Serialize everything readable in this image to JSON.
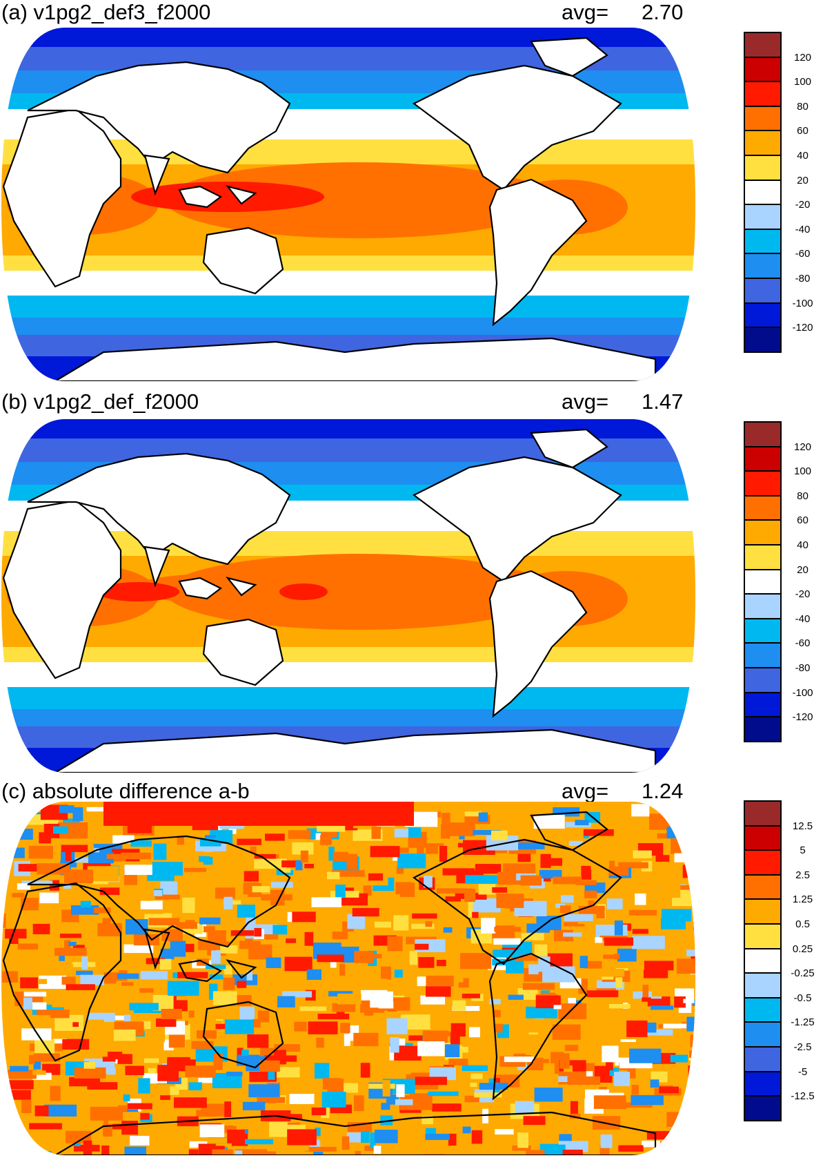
{
  "panels": [
    {
      "id": "a",
      "title": "(a) v1pg2_def3_f2000",
      "avg_label": "avg=",
      "avg_value": "2.70",
      "colorbar": {
        "colors": [
          "#9a2a2a",
          "#cc0000",
          "#ff1a00",
          "#ff7000",
          "#ffaa00",
          "#ffe040",
          "#ffffff",
          "#a9d4ff",
          "#00b8f0",
          "#1e8ef0",
          "#4065e0",
          "#0018d8",
          "#000c8c"
        ],
        "labels": [
          "120",
          "100",
          "80",
          "60",
          "40",
          "20",
          "-20",
          "-40",
          "-60",
          "-80",
          "-100",
          "-120"
        ]
      }
    },
    {
      "id": "b",
      "title": "(b) v1pg2_def_f2000",
      "avg_label": "avg=",
      "avg_value": "1.47",
      "colorbar": {
        "colors": [
          "#9a2a2a",
          "#cc0000",
          "#ff1a00",
          "#ff7000",
          "#ffaa00",
          "#ffe040",
          "#ffffff",
          "#a9d4ff",
          "#00b8f0",
          "#1e8ef0",
          "#4065e0",
          "#0018d8",
          "#000c8c"
        ],
        "labels": [
          "120",
          "100",
          "80",
          "60",
          "40",
          "20",
          "-20",
          "-40",
          "-60",
          "-80",
          "-100",
          "-120"
        ]
      }
    },
    {
      "id": "c",
      "title": "(c) absolute difference a-b",
      "avg_label": "avg=",
      "avg_value": "1.24",
      "colorbar": {
        "colors": [
          "#9a2a2a",
          "#cc0000",
          "#ff1a00",
          "#ff7000",
          "#ffaa00",
          "#ffe040",
          "#ffffff",
          "#a9d4ff",
          "#00b8f0",
          "#1e8ef0",
          "#4065e0",
          "#0018d8",
          "#000c8c"
        ],
        "labels": [
          "12.5",
          "5",
          "2.5",
          "1.25",
          "0.5",
          "0.25",
          "-0.25",
          "-0.5",
          "-1.25",
          "-2.5",
          "-5",
          "-12.5"
        ]
      }
    }
  ]
}
